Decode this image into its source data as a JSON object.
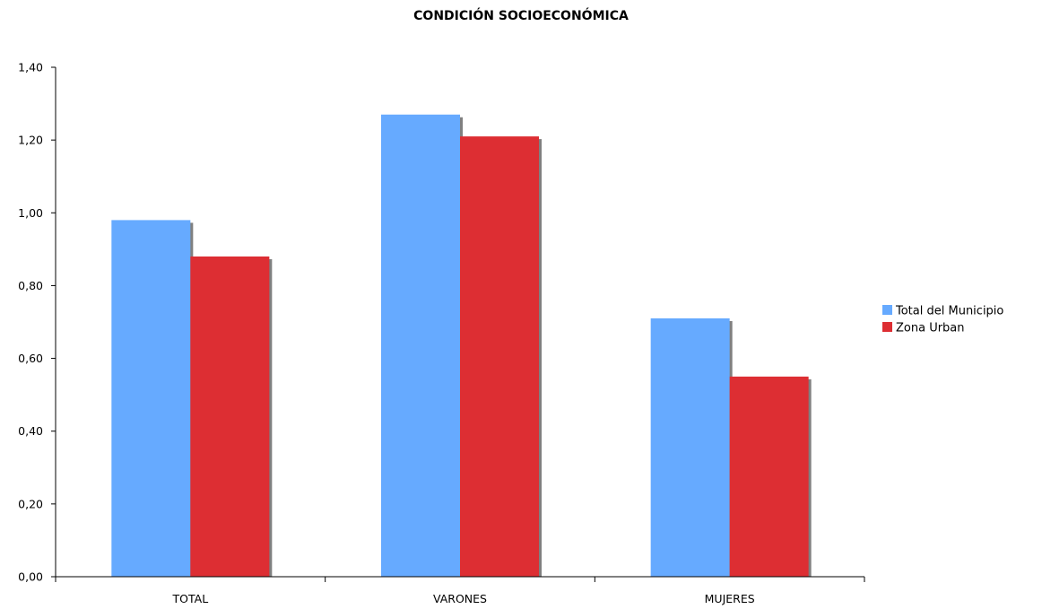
{
  "chart_data": {
    "type": "bar",
    "title": "CONDICIÓN SOCIOECONÓMICA",
    "xlabel": "",
    "ylabel": "",
    "categories": [
      "TOTAL",
      "VARONES",
      "MUJERES"
    ],
    "series": [
      {
        "name": "Total del Municipio",
        "values": [
          0.98,
          1.27,
          0.71
        ],
        "color": "#66aaff"
      },
      {
        "name": "Zona Urban",
        "values": [
          0.88,
          1.21,
          0.55
        ],
        "color": "#dd2e33"
      }
    ],
    "ylim": [
      0,
      1.4
    ],
    "yticks": [
      "0,00",
      "0,20",
      "0,40",
      "0,60",
      "0,80",
      "1,00",
      "1,20",
      "1,40"
    ],
    "grid": false,
    "legend": "right",
    "shadow_color": "#808080"
  }
}
